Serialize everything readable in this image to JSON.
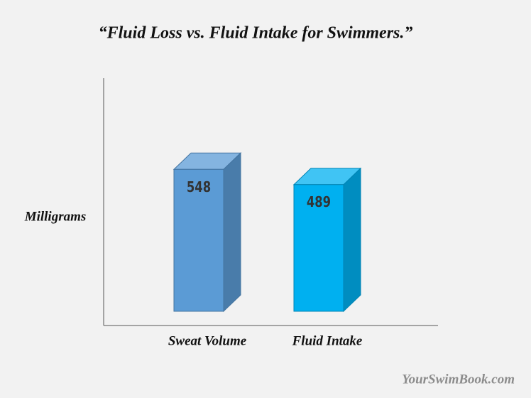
{
  "chart_data": {
    "type": "bar3d",
    "title": "“Fluid Loss vs. Fluid Intake for Swimmers.”",
    "y_label": "Milligrams",
    "categories": [
      "Sweat Volume",
      "Fluid Intake"
    ],
    "values": [
      548,
      489
    ],
    "colors": [
      "#5b9bd5",
      "#00b0f0"
    ],
    "ylim": [
      0,
      900
    ],
    "grid": false,
    "source": "YourSwimBook.com"
  }
}
